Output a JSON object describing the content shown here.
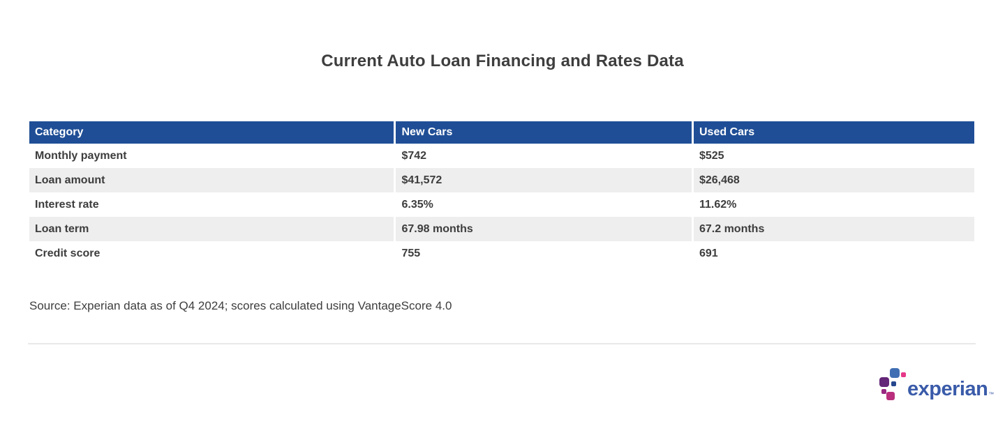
{
  "title": "Current Auto Loan Financing and Rates Data",
  "table": {
    "columns": [
      "Category",
      "New Cars",
      "Used Cars"
    ],
    "rows": [
      {
        "category": "Monthly payment",
        "new_cars": "$742",
        "used_cars": "$525"
      },
      {
        "category": "Loan amount",
        "new_cars": "$41,572",
        "used_cars": "$26,468"
      },
      {
        "category": "Interest rate",
        "new_cars": "6.35%",
        "used_cars": "11.62%"
      },
      {
        "category": "Loan term",
        "new_cars": "67.98 months",
        "used_cars": "67.2 months"
      },
      {
        "category": "Credit score",
        "new_cars": "755",
        "used_cars": "691"
      }
    ]
  },
  "source": "Source: Experian data as of Q4 2024; scores calculated using VantageScore 4.0",
  "logo": {
    "text": "experian",
    "trademark": "™"
  },
  "colors": {
    "header_background": "#1f4e96",
    "header_text": "#ffffff",
    "row_alt_background": "#eeeeee",
    "body_text": "#3d3d3d",
    "logo_wordmark": "#3a5ba9",
    "logo_blue": "#406eb3",
    "logo_purple": "#632678",
    "logo_magenta": "#982881",
    "logo_crimson": "#ba2f7d",
    "logo_pink": "#e63888",
    "logo_indigo": "#26478d"
  },
  "chart_data": {
    "type": "table",
    "title": "Current Auto Loan Financing and Rates Data",
    "columns": [
      "Category",
      "New Cars",
      "Used Cars"
    ],
    "rows": [
      [
        "Monthly payment",
        "$742",
        "$525"
      ],
      [
        "Loan amount",
        "$41,572",
        "$26,468"
      ],
      [
        "Interest rate",
        "6.35%",
        "11.62%"
      ],
      [
        "Loan term",
        "67.98 months",
        "67.2 months"
      ],
      [
        "Credit score",
        "755",
        "691"
      ]
    ],
    "source_note": "Source: Experian data as of Q4 2024; scores calculated using VantageScore 4.0"
  }
}
